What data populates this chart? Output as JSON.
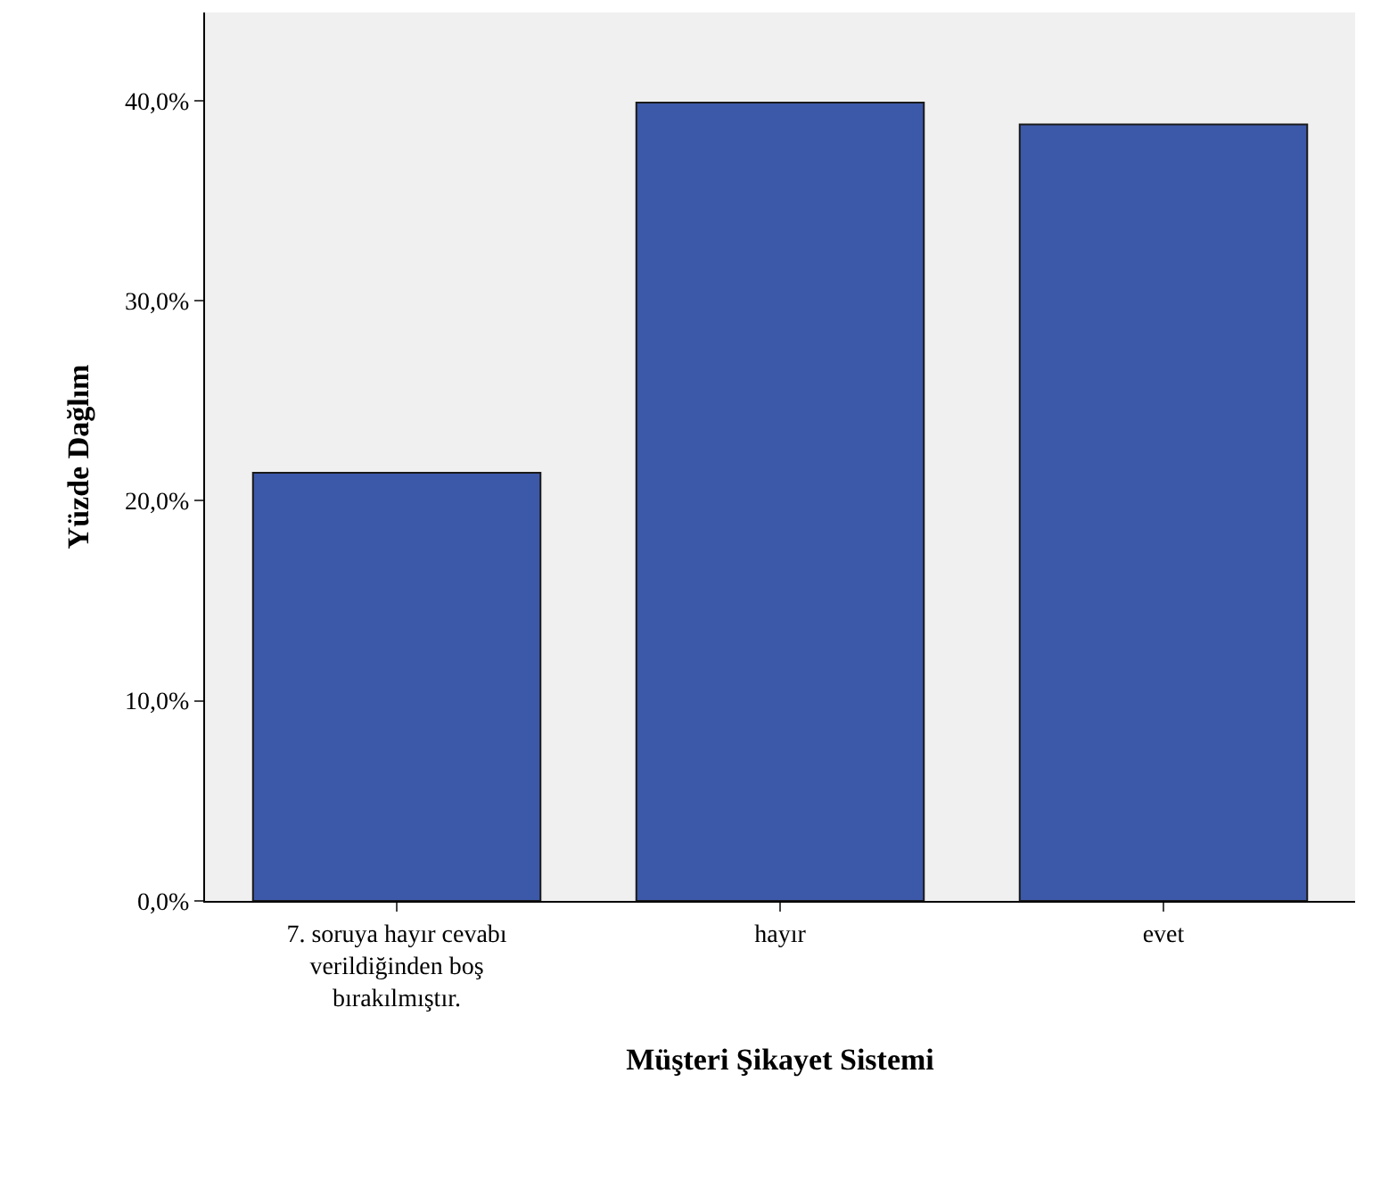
{
  "chart_data": {
    "type": "bar",
    "xlabel": "Müşteri Şikayet Sistemi",
    "ylabel": "Yüzde Dağlım",
    "categories": [
      "7. soruya hayır cevabı verildiğinden boş bırakılmıştır.",
      "hayır",
      "evet"
    ],
    "values": [
      21.4,
      39.9,
      38.8
    ],
    "color": "#3c58a8",
    "ylim": [
      0,
      44.4
    ],
    "yticks": [
      {
        "value": 0,
        "label": "0,0%"
      },
      {
        "value": 10,
        "label": "10,0%"
      },
      {
        "value": 20,
        "label": "20,0%"
      },
      {
        "value": 30,
        "label": "30,0%"
      },
      {
        "value": 40,
        "label": "40,0%"
      }
    ],
    "grid": false
  }
}
